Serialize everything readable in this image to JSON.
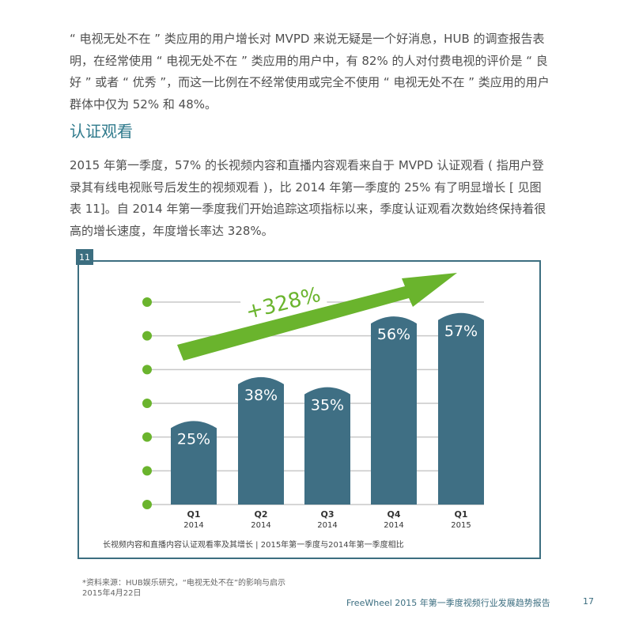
{
  "paragraph1": "“ 电视无处不在 ” 类应用的用户增长对 MVPD 来说无疑是一个好消息，HUB 的调查报告表明，在经常使用 “ 电视无处不在 ” 类应用的用户中，有 82% 的人对付费电视的评价是 “ 良好 ” 或者 “ 优秀 ”，而这一比例在不经常使用或完全不使用 “ 电视无处不在 ” 类应用的用户群体中仅为 52% 和 48%。",
  "heading": "认证观看",
  "paragraph2": "2015 年第一季度，57% 的长视频内容和直播内容观看来自于 MVPD 认证观看 ( 指用户登录其有线电视账号后发生的视频观看 )，比 2014 年第一季度的 25% 有了明显增长 [ 见图表 11]。自 2014 年第一季度我们开始追踪这项指标以来，季度认证观看次数始终保持着很高的增长速度，年度增长率达 328%。",
  "chart_number": "11",
  "chart_data": {
    "type": "bar",
    "categories": [
      "Q1|2014",
      "Q2|2014",
      "Q3|2014",
      "Q4|2014",
      "Q1|2015"
    ],
    "values": [
      25,
      38,
      35,
      56,
      57
    ],
    "value_labels": [
      "25%",
      "38%",
      "35%",
      "56%",
      "57%"
    ],
    "annotation": "+328%",
    "ylim": [
      0,
      60
    ],
    "grid": true,
    "bar_color": "#3f6f84",
    "arrow_color": "#6ab42d",
    "dot_color": "#6ab42d",
    "caption": "长视频内容和直播内容认证观看率及其增长 | 2015年第一季度与2014年第一季度相比"
  },
  "source_note": "*资料来源：HUB娱乐研究，“电视无处不在”的影响与启示2015年4月22日",
  "footer_text": "FreeWheel 2015 年第一季度视频行业发展趋势报告",
  "page_number": "17"
}
